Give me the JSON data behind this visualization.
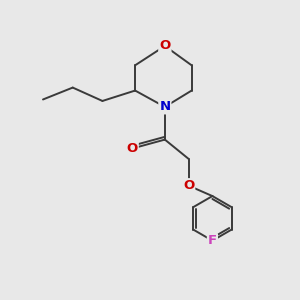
{
  "background_color": "#e8e8e8",
  "bond_color": "#3a3a3a",
  "atom_colors": {
    "O": "#cc0000",
    "N": "#0000cc",
    "F": "#cc44bb",
    "C": "#3a3a3a"
  },
  "bond_width": 1.4,
  "font_size_atoms": 9.5,
  "figsize": [
    3.0,
    3.0
  ],
  "dpi": 100
}
